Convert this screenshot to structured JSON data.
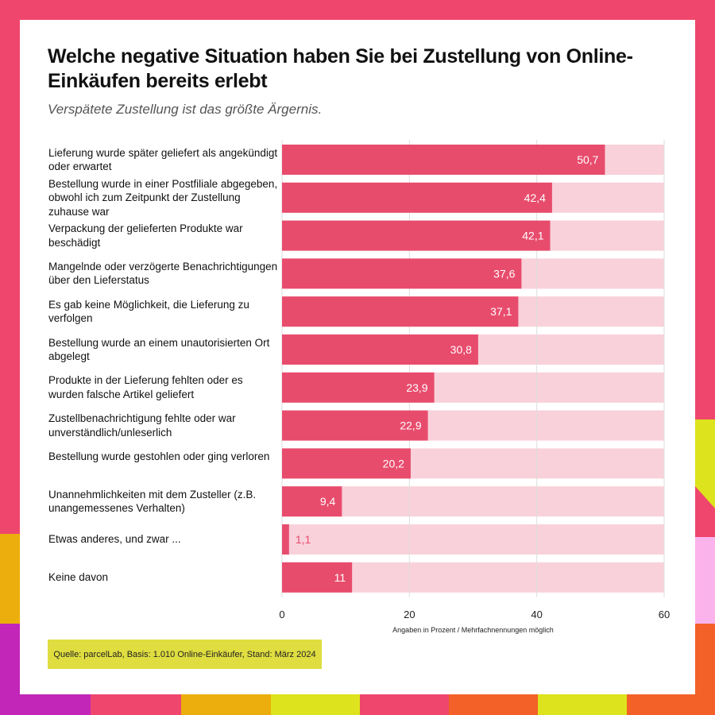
{
  "colors": {
    "bar": "#e84c6d",
    "track": "#f9d1da",
    "grid": "#dddddd",
    "frame": "#ef466d"
  },
  "chart_data": {
    "type": "bar",
    "orientation": "horizontal",
    "title": "Welche negative Situation haben Sie bei Zustellung von Online-Einkäufen bereits erlebt",
    "subtitle": "Verspätete Zustellung ist das größte Ärgernis.",
    "xlabel": "Angaben in Prozent / Mehrfachnennungen möglich",
    "xlim": [
      0,
      60
    ],
    "xticks": [
      "0",
      "20",
      "40",
      "60"
    ],
    "grid": true,
    "categories": [
      "Lieferung wurde später geliefert als angekündigt oder erwartet",
      "Bestellung wurde in einer Postfiliale abgegeben, obwohl ich zum Zeitpunkt der Zustellung zuhause war",
      "Verpackung der gelieferten Produkte war beschädigt",
      "Mangelnde oder verzögerte Benachrichtigungen über den Lieferstatus",
      "Es gab keine Möglichkeit, die Lieferung zu verfolgen",
      "Bestellung wurde an einem unautorisierten Ort abgelegt",
      "Produkte in der Lieferung fehlten oder es wurden falsche Artikel geliefert",
      "Zustellbenachrichtigung fehlte oder war unverständlich/unleserlich",
      "Bestellung wurde gestohlen oder ging verloren",
      "Unannehmlichkeiten mit dem Zusteller (z.B. unangemessenes Verhalten)",
      "Etwas anderes, und zwar ...",
      "Keine davon"
    ],
    "values": [
      50.7,
      42.4,
      42.1,
      37.6,
      37.1,
      30.8,
      23.9,
      22.9,
      20.2,
      9.4,
      1.1,
      11
    ],
    "value_labels": [
      "50,7",
      "42,4",
      "42,1",
      "37,6",
      "37,1",
      "30,8",
      "23,9",
      "22,9",
      "20,2",
      "9,4",
      "1,1",
      "11"
    ]
  },
  "source": "Quelle: parcelLab, Basis: 1.010 Online-Einkäufer, Stand: März 2024"
}
